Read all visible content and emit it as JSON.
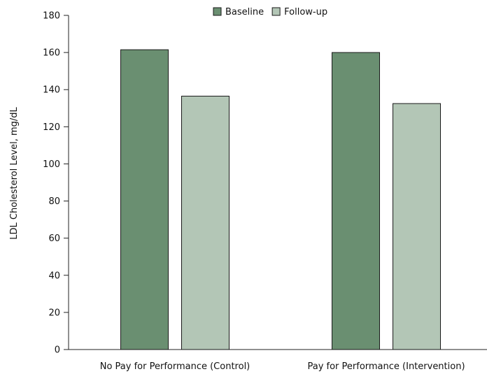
{
  "chart_data": {
    "type": "bar",
    "categories": [
      "No Pay for Performance (Control)",
      "Pay for Performance (Intervention)"
    ],
    "series": [
      {
        "name": "Baseline",
        "values": [
          161.5,
          160
        ],
        "color": "#6a8f71"
      },
      {
        "name": "Follow-up",
        "values": [
          136.5,
          132.5
        ],
        "color": "#b3c6b6"
      }
    ],
    "ylabel": "LDL Cholesterol Level, mg/dL",
    "xlabel": "",
    "ylim": [
      0,
      180
    ],
    "yticks": [
      0,
      20,
      40,
      60,
      80,
      100,
      120,
      140,
      160,
      180
    ],
    "grid": false,
    "legend_position": "top-right"
  }
}
